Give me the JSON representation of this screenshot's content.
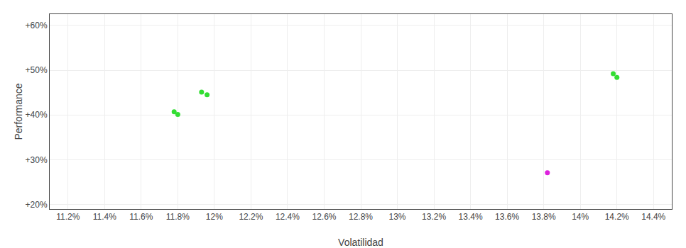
{
  "chart_data": {
    "type": "scatter",
    "xlabel": "Volatilidad",
    "ylabel": "Performance",
    "xlim": [
      0.111,
      0.145
    ],
    "ylim": [
      0.19,
      0.625
    ],
    "xticks": [
      {
        "value": 0.112,
        "label": "11.2%"
      },
      {
        "value": 0.114,
        "label": "11.4%"
      },
      {
        "value": 0.116,
        "label": "11.6%"
      },
      {
        "value": 0.118,
        "label": "11.8%"
      },
      {
        "value": 0.12,
        "label": "12%"
      },
      {
        "value": 0.122,
        "label": "12.2%"
      },
      {
        "value": 0.124,
        "label": "12.4%"
      },
      {
        "value": 0.126,
        "label": "12.6%"
      },
      {
        "value": 0.128,
        "label": "12.8%"
      },
      {
        "value": 0.13,
        "label": "13%"
      },
      {
        "value": 0.132,
        "label": "13.2%"
      },
      {
        "value": 0.134,
        "label": "13.4%"
      },
      {
        "value": 0.136,
        "label": "13.6%"
      },
      {
        "value": 0.138,
        "label": "13.8%"
      },
      {
        "value": 0.14,
        "label": "14%"
      },
      {
        "value": 0.142,
        "label": "14.2%"
      },
      {
        "value": 0.144,
        "label": "14.4%"
      }
    ],
    "yticks": [
      {
        "value": 0.2,
        "label": "+20%"
      },
      {
        "value": 0.3,
        "label": "+30%"
      },
      {
        "value": 0.4,
        "label": "+40%"
      },
      {
        "value": 0.5,
        "label": "+50%"
      },
      {
        "value": 0.6,
        "label": "+60%"
      }
    ],
    "grid": true,
    "series": [
      {
        "color": "#33dd33",
        "x": [
          0.1178,
          0.118,
          0.1193,
          0.1196,
          0.1418,
          0.142
        ],
        "values": [
          0.407,
          0.401,
          0.451,
          0.445,
          0.492,
          0.484
        ]
      },
      {
        "color": "#dd22dd",
        "x": [
          0.1382
        ],
        "values": [
          0.271
        ]
      }
    ]
  }
}
